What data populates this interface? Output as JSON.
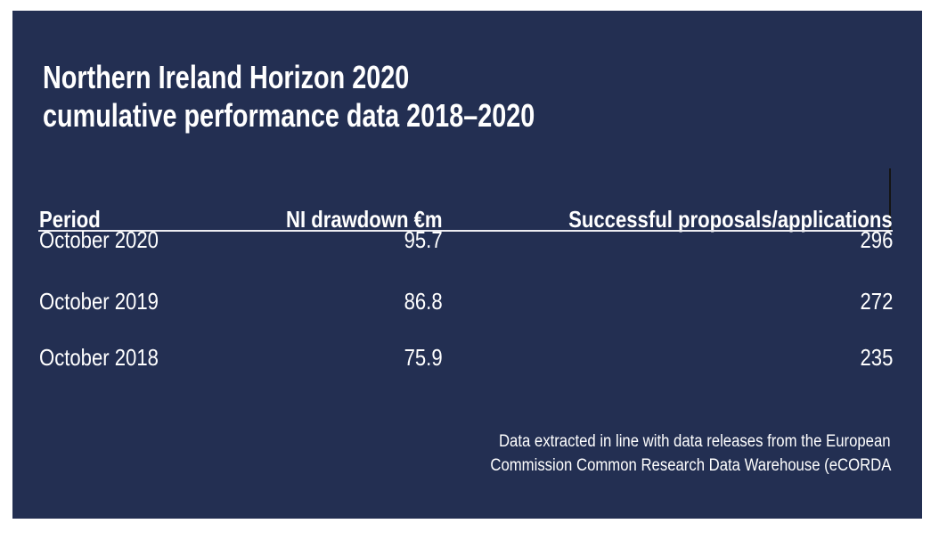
{
  "title": {
    "line1": "Northern Ireland Horizon 2020",
    "line2": "cumulative performance data 2018–2020"
  },
  "table": {
    "headers": {
      "period": "Period",
      "drawdown": "NI drawdown €m",
      "successful": "Successful proposals/applications"
    },
    "rows": [
      {
        "period": "October 2020",
        "drawdown": "95.7",
        "successful": "296"
      },
      {
        "period": "October 2019",
        "drawdown": "86.8",
        "successful": "272"
      },
      {
        "period": "October 2018",
        "drawdown": "75.9",
        "successful": "235"
      }
    ]
  },
  "footnote": {
    "line1": "Data extracted in line with data releases from the European",
    "line2": "Commission Common Research Data Warehouse (eCORDA"
  },
  "colors": {
    "page_background": "#FFFFFF",
    "panel_background": "#232F52",
    "text": "#FFFFFF",
    "header_rule": "#EDEDF2",
    "caret_line": "#141414"
  },
  "chart_data": {
    "type": "table",
    "title": "Northern Ireland Horizon 2020 cumulative performance data 2018–2020",
    "columns": [
      "Period",
      "NI drawdown €m",
      "Successful proposals/applications"
    ],
    "rows": [
      [
        "October 2020",
        95.7,
        296
      ],
      [
        "October 2019",
        86.8,
        272
      ],
      [
        "October 2018",
        75.9,
        235
      ]
    ],
    "footnote": "Data extracted in line with data releases from the European Commission Common Research Data Warehouse (eCORDA",
    "layout": {
      "period_column_align": "left",
      "drawdown_column_align": "right",
      "successful_column_align": "right",
      "footnote_align": "right"
    }
  }
}
